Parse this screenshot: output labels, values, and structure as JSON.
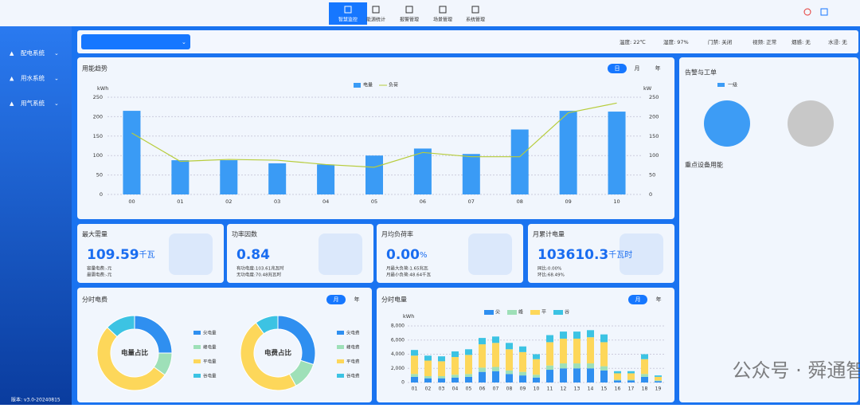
{
  "header": {
    "tabs": [
      "智慧监控",
      "能源统计",
      "报警管理",
      "场景管理",
      "系统管理"
    ]
  },
  "sidebar": {
    "items": [
      "配电系统",
      "用水系统",
      "用气系统"
    ],
    "version": "版本: v3.0-20240815"
  },
  "status": [
    "温度: 22℃",
    "湿度: 97%",
    "门禁: 关闭",
    "视频: 正常",
    "烟感: 无",
    "水浸: 无"
  ],
  "alerts": {
    "title": "告警与工单",
    "legend": "一级",
    "subtitle": "重点设备用能"
  },
  "kpis": [
    {
      "title": "最大需量",
      "value": "109.59",
      "unit": "千瓦",
      "lines": [
        "容量电费:-元",
        "最需电费:-元"
      ]
    },
    {
      "title": "功率因数",
      "value": "0.84",
      "unit": "",
      "lines": [
        "有功电度:103.61兆瓦时",
        "无功电度:70.48兆瓦时"
      ]
    },
    {
      "title": "月均负荷率",
      "value": "0.00",
      "unit": "%",
      "lines": [
        "月最大负荷:1.65兆瓦",
        "月最小负荷:48.64千瓦"
      ]
    },
    {
      "title": "月累计电量",
      "value": "103610.3",
      "unit": "千瓦时",
      "lines": [
        "同比:0.00%",
        "环比:68.49%"
      ]
    }
  ],
  "watermark": "公众号 · 舜通智能",
  "chart_data": [
    {
      "type": "combo",
      "title": "用能趋势",
      "tabs": [
        "日",
        "月",
        "年"
      ],
      "ylabel": "kWh",
      "y2label": "kW",
      "categories": [
        "00",
        "01",
        "02",
        "03",
        "04",
        "05",
        "06",
        "07",
        "08",
        "09",
        "10"
      ],
      "series": [
        {
          "name": "电量",
          "color": "#3a9bf5",
          "values": [
            215,
            88,
            88,
            80,
            77,
            100,
            118,
            104,
            167,
            215,
            213
          ]
        },
        {
          "name": "负荷",
          "color": "#b7cc3a",
          "axis": "y2",
          "values": [
            158,
            85,
            90,
            88,
            77,
            70,
            108,
            97,
            97,
            210,
            235
          ]
        }
      ],
      "ylim": [
        0,
        250
      ],
      "yticks": [
        0,
        50,
        100,
        150,
        200,
        250
      ],
      "y2lim": [
        0,
        250
      ],
      "y2ticks": [
        0,
        50,
        100,
        150,
        200,
        250
      ],
      "grid": true
    },
    {
      "type": "donut",
      "title": "分时电费",
      "tabs": [
        "月",
        "年"
      ],
      "center_label": "电量占比",
      "categories": [
        "尖电量",
        "峰电量",
        "平电量",
        "谷电量"
      ],
      "values": [
        25,
        10,
        52,
        13
      ],
      "colors": [
        "#2f8ff0",
        "#9ee0b8",
        "#fdd75a",
        "#3cc3e3"
      ]
    },
    {
      "type": "donut",
      "center_label": "电费占比",
      "categories": [
        "尖电费",
        "峰电费",
        "平电费",
        "谷电费"
      ],
      "values": [
        30,
        12,
        48,
        10
      ],
      "colors": [
        "#2f8ff0",
        "#9ee0b8",
        "#fdd75a",
        "#3cc3e3"
      ]
    },
    {
      "type": "stacked_bar",
      "title": "分时电量",
      "tabs": [
        "月",
        "年"
      ],
      "ylabel": "kWh",
      "categories": [
        "01",
        "02",
        "03",
        "04",
        "05",
        "06",
        "07",
        "08",
        "09",
        "10",
        "11",
        "12",
        "13",
        "14",
        "15",
        "16",
        "17",
        "18",
        "19"
      ],
      "series": [
        {
          "name": "尖",
          "color": "#2f8ff0",
          "values": [
            800,
            600,
            600,
            700,
            800,
            1500,
            1600,
            1200,
            1000,
            700,
            1800,
            2000,
            2000,
            2000,
            1700,
            300,
            300,
            800,
            200
          ]
        },
        {
          "name": "峰",
          "color": "#9ee0b8",
          "values": [
            400,
            300,
            300,
            400,
            400,
            600,
            600,
            500,
            500,
            400,
            600,
            700,
            700,
            700,
            600,
            100,
            100,
            400,
            100
          ]
        },
        {
          "name": "平",
          "color": "#fdd75a",
          "values": [
            2600,
            2200,
            2100,
            2500,
            2700,
            3300,
            3400,
            3000,
            2800,
            2200,
            3300,
            3500,
            3500,
            3700,
            3400,
            900,
            900,
            2100,
            500
          ]
        },
        {
          "name": "谷",
          "color": "#3cc3e3",
          "values": [
            800,
            700,
            700,
            800,
            800,
            900,
            900,
            900,
            800,
            700,
            1000,
            1000,
            1000,
            1000,
            1100,
            300,
            300,
            700,
            200
          ]
        }
      ],
      "ylim": [
        0,
        8000
      ],
      "yticks": [
        0,
        {
          "value": 2000,
          "label": "2,000"
        },
        {
          "value": 4000,
          "label": "4,000"
        },
        {
          "value": 6000,
          "label": "6,000"
        },
        {
          "value": 8000,
          "label": "8,000"
        }
      ],
      "grid": true
    }
  ]
}
